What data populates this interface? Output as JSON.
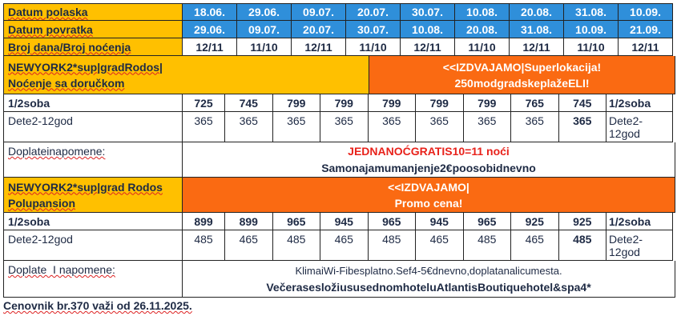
{
  "header": {
    "departure_label": "Datum polaska",
    "return_label": "Datum povratka",
    "nights_label": "Broj dana/Broj noćenja",
    "departures": [
      "18.06.",
      "29.06.",
      "09.07.",
      "20.07.",
      "30.07.",
      "10.08.",
      "20.08.",
      "31.08.",
      "10.09."
    ],
    "returns": [
      "29.06.",
      "09.07.",
      "20.07.",
      "30.07.",
      "10.08.",
      "20.08.",
      "31.08.",
      "10.09.",
      "21.09."
    ],
    "nights": [
      "12/11",
      "11/10",
      "12/11",
      "11/10",
      "12/11",
      "11/10",
      "12/11",
      "11/10",
      "12/11"
    ]
  },
  "hotel1": {
    "name_line1": "NEWYORK2*sup|gradRodos|",
    "name_line2": "Noćenje sa doručkom",
    "banner_line1": "<<IZDVAJAMO|Superlokacija!",
    "banner_line2": "250modgradskeplažeELI!",
    "room_label": "1/2soba",
    "room_prices": [
      "725",
      "745",
      "799",
      "799",
      "799",
      "799",
      "799",
      "765",
      "745"
    ],
    "child_label": "Dete2-12god",
    "child_prices": [
      "365",
      "365",
      "365",
      "365",
      "365",
      "365",
      "365",
      "365",
      "365"
    ],
    "end_room_label": "1/2soba",
    "end_child_label_1": "Dete2-",
    "end_child_label_2": "12god",
    "notes_label": "Doplateinapomene:",
    "notes_line1": "JEDNANOĆGRATIS10=11 noći",
    "notes_line2": "Samonajamumanjenje2€poosobidnevno"
  },
  "hotel2": {
    "name_line1": "NEWYORK2*sup|grad Rodos",
    "name_line2": "Polupansion",
    "banner_line1": "<<IZDVAJAMO|",
    "banner_line2": "Promo cena!",
    "room_label": "1/2soba",
    "room_prices": [
      "899",
      "899",
      "965",
      "945",
      "965",
      "945",
      "965",
      "925",
      "925"
    ],
    "child_label": "Dete2-12god",
    "child_prices": [
      "485",
      "465",
      "485",
      "465",
      "485",
      "465",
      "485",
      "465",
      "485"
    ],
    "end_room_label": "1/2soba",
    "end_child_label_1": "Dete2-",
    "end_child_label_2": "12god",
    "notes_label": "Doplate  I napomene:",
    "notes_line1": "KlimaiWi-Fibesplatno.Sef4-5€dnevno,doplatanalicumesta.",
    "notes_line2": "VečerasesložiususednomhoteluAtlantisBoutiquehotel&spa4*"
  },
  "footer": "Cenovnik br.370 važi od 26.11.2025.",
  "colors": {
    "yellow": "#FFC000",
    "blue": "#2F8FDA",
    "orange": "#FA6A12",
    "red": "#E8221B"
  }
}
